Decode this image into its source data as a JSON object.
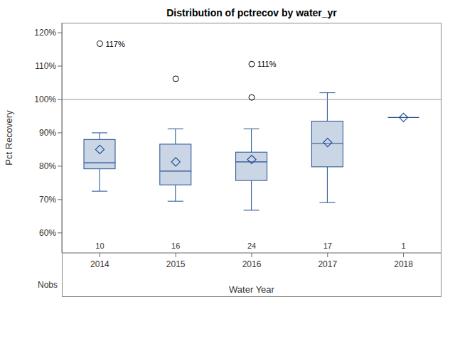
{
  "chart_data": {
    "type": "box",
    "title": "Distribution of pctrecov by water_yr",
    "x_label": "Water Year",
    "y_label": "Pct Recovery",
    "categories": [
      "2014",
      "2015",
      "2016",
      "2017",
      "2018"
    ],
    "min": [
      72.5,
      69.5,
      66.8,
      69.1,
      94.6
    ],
    "q1": [
      79.2,
      74.4,
      75.7,
      79.8,
      94.6
    ],
    "median": [
      81.0,
      78.5,
      81.3,
      86.8,
      94.6
    ],
    "q3": [
      88.0,
      86.6,
      84.2,
      93.5,
      94.6
    ],
    "max": [
      90.0,
      91.2,
      91.2,
      102.0,
      94.6
    ],
    "mean": [
      85.0,
      81.3,
      82.0,
      87.1,
      94.6
    ],
    "outliers": [
      [
        116.7
      ],
      [
        106.2
      ],
      [
        100.6,
        110.6
      ],
      [],
      []
    ],
    "counts": [
      10,
      16,
      24,
      17,
      1
    ],
    "counts_label": "Nobs",
    "annotations": [
      {
        "category": "2014",
        "value": 116.7,
        "label": "117%"
      },
      {
        "category": "2016",
        "value": 110.6,
        "label": "111%"
      }
    ],
    "reference_line": 100,
    "ylim": [
      54,
      123
    ],
    "yticks": [
      {
        "value": 60,
        "label": "60%"
      },
      {
        "value": 70,
        "label": "70%"
      },
      {
        "value": 80,
        "label": "80%"
      },
      {
        "value": 90,
        "label": "90%"
      },
      {
        "value": 100,
        "label": "100%"
      },
      {
        "value": 110,
        "label": "110%"
      },
      {
        "value": 120,
        "label": "120%"
      }
    ],
    "color": "#cad5e5",
    "grid": false
  }
}
